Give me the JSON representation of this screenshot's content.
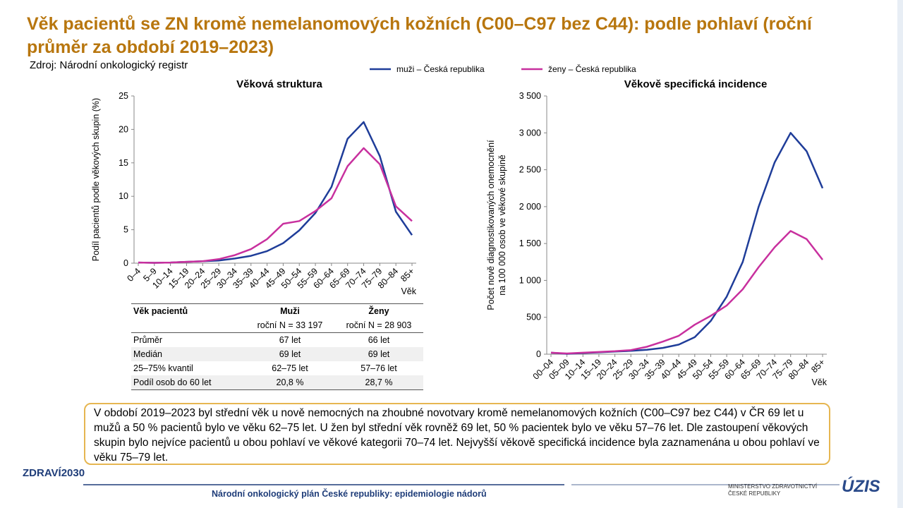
{
  "title": "Věk pacientů se ZN kromě nemelanomových kožních (C00–C97 bez C44): podle pohlaví (roční průměr za období 2019–2023)",
  "source": "Zdroj: Národní onkologický registr",
  "chart_data": [
    {
      "type": "line",
      "title": "Věková struktura",
      "y_label": "Podíl pacientů podle věkových skupin (%)",
      "x_label": "Věk",
      "categories": [
        "0–4",
        "5–9",
        "10–14",
        "15–19",
        "20–24",
        "25–29",
        "30–34",
        "35–39",
        "40–44",
        "45–49",
        "50–54",
        "55–59",
        "60–64",
        "65–69",
        "70–74",
        "75–79",
        "80–84",
        "85+"
      ],
      "series": [
        {
          "name": "muži – Česká republika",
          "color": "#1f3d99",
          "values": [
            0.1,
            0.05,
            0.1,
            0.2,
            0.3,
            0.4,
            0.7,
            1.1,
            1.8,
            3.0,
            4.9,
            7.5,
            11.4,
            18.6,
            21.1,
            16.0,
            7.7,
            4.2
          ]
        },
        {
          "name": "ženy – Česká republika",
          "color": "#c8309e",
          "values": [
            0.1,
            0.05,
            0.1,
            0.2,
            0.3,
            0.6,
            1.2,
            2.1,
            3.6,
            5.9,
            6.3,
            7.8,
            9.7,
            14.5,
            17.2,
            14.8,
            8.5,
            6.3
          ]
        }
      ],
      "ylim": [
        0,
        25
      ],
      "yticks": [
        0,
        5,
        10,
        15,
        20,
        25
      ]
    },
    {
      "type": "line",
      "title": "Věkově specifická incidence",
      "y_label": "Počet nově diagnostikovaných onemocnění na 100 000 osob ve věkové skupině",
      "x_label": "Věk",
      "categories": [
        "00–04",
        "05–09",
        "10–14",
        "15–19",
        "20–24",
        "25–29",
        "30–34",
        "35–39",
        "40–44",
        "45–49",
        "50–54",
        "55–59",
        "60–64",
        "65–69",
        "70–74",
        "75–79",
        "80–84",
        "85+"
      ],
      "series": [
        {
          "name": "muži – Česká republika",
          "color": "#1f3d99",
          "values": [
            20,
            5,
            15,
            25,
            35,
            45,
            60,
            85,
            130,
            230,
            450,
            780,
            1250,
            2000,
            2600,
            3000,
            2750,
            2250
          ]
        },
        {
          "name": "ženy – Česká republika",
          "color": "#c8309e",
          "values": [
            20,
            10,
            20,
            30,
            40,
            55,
            100,
            170,
            250,
            400,
            520,
            660,
            880,
            1180,
            1450,
            1670,
            1560,
            1280
          ]
        }
      ],
      "ylim": [
        0,
        3500
      ],
      "yticks": [
        0,
        500,
        {
          "value": 1000,
          "label": "1 000"
        },
        {
          "value": 1500,
          "label": "1 500"
        },
        {
          "value": 2000,
          "label": "2 000"
        },
        {
          "value": 2500,
          "label": "2 500"
        },
        {
          "value": 3000,
          "label": "3 000"
        },
        {
          "value": 3500,
          "label": "3 500"
        }
      ]
    }
  ],
  "table": {
    "header": [
      "Věk pacientů",
      "Muži",
      "Ženy"
    ],
    "subheader": [
      "roční N = 33 197",
      "roční N = 28 903"
    ],
    "rows": [
      [
        "Průměr",
        "67 let",
        "66 let"
      ],
      [
        "Medián",
        "69 let",
        "69 let"
      ],
      [
        "25–75% kvantil",
        "62–75 let",
        "57–76 let"
      ],
      [
        "Podíl osob do 60 let",
        "20,8 %",
        "28,7 %"
      ]
    ]
  },
  "summary": "V období 2019–2023 byl střední věk u nově nemocných na zhoubné novotvary kromě nemelanomových kožních (C00–C97 bez C44) v ČR 69 let u mužů a 50 % pacientů bylo ve věku 62–75 let. U žen byl střední věk rovněž 69 let, 50 % pacientek bylo ve věku 57–76 let. Dle zastoupení věkových skupin bylo nejvíce pacientů u obou pohlaví ve věkové kategorii 70–74 let. Nejvyšší věkově specifická incidence byla zaznamenána u obou pohlaví ve věku 75–79 let.",
  "footer": {
    "text": "Národní onkologický plán České republiky: epidemiologie nádorů",
    "logo_left": "ZDRAVÍ2030",
    "ministry": [
      "MINISTERSTVO ZDRAVOTNICTVÍ",
      "ČESKÉ REPUBLIKY"
    ],
    "logo_right": "ÚZIS"
  }
}
